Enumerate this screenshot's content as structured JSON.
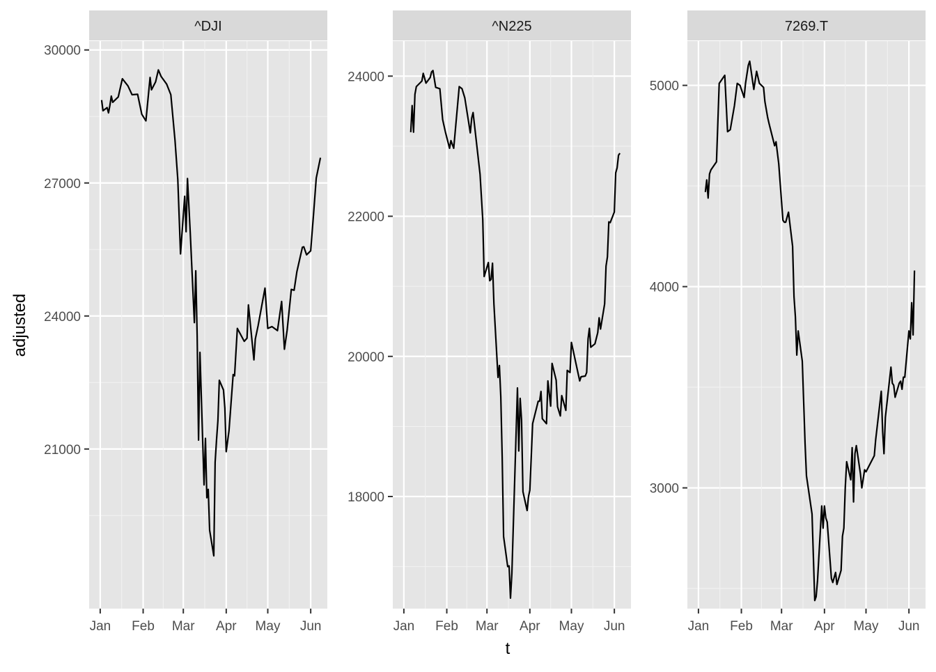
{
  "chart_data": {
    "type": "line",
    "layout": "facet_wrap",
    "xlabel": "t",
    "ylabel": "adjusted",
    "x_tick_labels": [
      "Jan",
      "Feb",
      "Mar",
      "Apr",
      "May",
      "Jun"
    ],
    "x_ticks": [
      "2020-01-01",
      "2020-02-01",
      "2020-03-01",
      "2020-04-01",
      "2020-05-01",
      "2020-06-01"
    ],
    "x_range": [
      "2019-12-24",
      "2020-06-13"
    ],
    "grid": true,
    "panel_background": "#e5e5e5",
    "strip_background": "#d9d9d9",
    "line_color": "#000000",
    "panels": [
      {
        "name": "^DJI",
        "ylim": [
          17400,
          30200
        ],
        "y_ticks": [
          21000,
          24000,
          27000,
          30000
        ],
        "x": [
          "2020-01-02",
          "2020-01-03",
          "2020-01-06",
          "2020-01-07",
          "2020-01-08",
          "2020-01-09",
          "2020-01-10",
          "2020-01-14",
          "2020-01-17",
          "2020-01-21",
          "2020-01-24",
          "2020-01-28",
          "2020-01-31",
          "2020-02-03",
          "2020-02-06",
          "2020-02-07",
          "2020-02-10",
          "2020-02-12",
          "2020-02-14",
          "2020-02-18",
          "2020-02-21",
          "2020-02-24",
          "2020-02-26",
          "2020-02-28",
          "2020-03-02",
          "2020-03-03",
          "2020-03-04",
          "2020-03-06",
          "2020-03-09",
          "2020-03-10",
          "2020-03-11",
          "2020-03-12",
          "2020-03-13",
          "2020-03-16",
          "2020-03-17",
          "2020-03-18",
          "2020-03-19",
          "2020-03-20",
          "2020-03-23",
          "2020-03-24",
          "2020-03-25",
          "2020-03-26",
          "2020-03-27",
          "2020-03-30",
          "2020-03-31",
          "2020-04-01",
          "2020-04-03",
          "2020-04-06",
          "2020-04-07",
          "2020-04-09",
          "2020-04-14",
          "2020-04-16",
          "2020-04-17",
          "2020-04-21",
          "2020-04-22",
          "2020-04-24",
          "2020-04-29",
          "2020-05-01",
          "2020-05-04",
          "2020-05-08",
          "2020-05-11",
          "2020-05-13",
          "2020-05-15",
          "2020-05-18",
          "2020-05-20",
          "2020-05-22",
          "2020-05-26",
          "2020-05-27",
          "2020-05-29",
          "2020-06-01",
          "2020-06-03",
          "2020-06-05",
          "2020-06-08"
        ],
        "values": [
          28870,
          28630,
          28700,
          28580,
          28750,
          28960,
          28820,
          28940,
          29350,
          29190,
          28990,
          29000,
          28550,
          28400,
          29380,
          29100,
          29280,
          29550,
          29400,
          29230,
          28990,
          27960,
          27080,
          25400,
          26700,
          25900,
          27100,
          25870,
          23850,
          25020,
          23550,
          21200,
          23180,
          20190,
          21240,
          19900,
          20090,
          19170,
          18590,
          20700,
          21200,
          21640,
          22550,
          22330,
          21920,
          20940,
          21410,
          22680,
          22650,
          23720,
          23430,
          23500,
          24250,
          23010,
          23480,
          23780,
          24630,
          23720,
          23760,
          23670,
          24330,
          23250,
          23680,
          24600,
          24580,
          25000,
          25550,
          25560,
          25380,
          25470,
          26270,
          27110,
          27570
        ]
      },
      {
        "name": "^N225",
        "ylim": [
          16400,
          24500
        ],
        "y_ticks": [
          18000,
          20000,
          22000,
          24000
        ],
        "x": [
          "2020-01-06",
          "2020-01-07",
          "2020-01-08",
          "2020-01-09",
          "2020-01-10",
          "2020-01-14",
          "2020-01-15",
          "2020-01-17",
          "2020-01-20",
          "2020-01-21",
          "2020-01-22",
          "2020-01-24",
          "2020-01-27",
          "2020-01-29",
          "2020-01-31",
          "2020-02-03",
          "2020-02-04",
          "2020-02-06",
          "2020-02-10",
          "2020-02-12",
          "2020-02-14",
          "2020-02-18",
          "2020-02-19",
          "2020-02-20",
          "2020-02-25",
          "2020-02-27",
          "2020-02-28",
          "2020-03-02",
          "2020-03-03",
          "2020-03-04",
          "2020-03-05",
          "2020-03-06",
          "2020-03-09",
          "2020-03-10",
          "2020-03-11",
          "2020-03-12",
          "2020-03-13",
          "2020-03-16",
          "2020-03-17",
          "2020-03-18",
          "2020-03-19",
          "2020-03-23",
          "2020-03-24",
          "2020-03-25",
          "2020-03-26",
          "2020-03-27",
          "2020-03-30",
          "2020-03-31",
          "2020-04-01",
          "2020-04-03",
          "2020-04-07",
          "2020-04-08",
          "2020-04-09",
          "2020-04-10",
          "2020-04-13",
          "2020-04-14",
          "2020-04-16",
          "2020-04-17",
          "2020-04-20",
          "2020-04-21",
          "2020-04-23",
          "2020-04-24",
          "2020-04-27",
          "2020-04-28",
          "2020-04-30",
          "2020-05-01",
          "2020-05-07",
          "2020-05-08",
          "2020-05-11",
          "2020-05-12",
          "2020-05-13",
          "2020-05-14",
          "2020-05-15",
          "2020-05-18",
          "2020-05-20",
          "2020-05-21",
          "2020-05-22",
          "2020-05-25",
          "2020-05-26",
          "2020-05-27",
          "2020-05-28",
          "2020-05-29",
          "2020-06-01",
          "2020-06-02",
          "2020-06-03",
          "2020-06-04",
          "2020-06-05"
        ],
        "values": [
          23200,
          23580,
          23200,
          23740,
          23850,
          23930,
          24040,
          23900,
          23980,
          24060,
          24080,
          23840,
          23820,
          23380,
          23200,
          22970,
          23080,
          22970,
          23850,
          23820,
          23690,
          23190,
          23400,
          23480,
          22600,
          21950,
          21140,
          21340,
          21080,
          21100,
          21330,
          20750,
          19700,
          19870,
          19420,
          18560,
          17430,
          17000,
          17010,
          16550,
          16900,
          19550,
          18650,
          19400,
          19090,
          18070,
          17800,
          18000,
          18090,
          19040,
          19360,
          19360,
          19500,
          19110,
          19040,
          19650,
          19290,
          19900,
          19660,
          19280,
          19150,
          19440,
          19230,
          19800,
          19770,
          20200,
          19650,
          19710,
          19720,
          19770,
          20250,
          20400,
          20130,
          20180,
          20340,
          20550,
          20390,
          20750,
          21290,
          21420,
          21920,
          21910,
          22060,
          22620,
          22690,
          22870,
          22900
        ]
      },
      {
        "name": "7269.T",
        "ylim": [
          2400,
          5220
        ],
        "y_ticks": [
          3000,
          4000,
          5000
        ],
        "x": [
          "2020-01-06",
          "2020-01-07",
          "2020-01-08",
          "2020-01-09",
          "2020-01-10",
          "2020-01-14",
          "2020-01-16",
          "2020-01-20",
          "2020-01-22",
          "2020-01-24",
          "2020-01-27",
          "2020-01-29",
          "2020-01-31",
          "2020-02-03",
          "2020-02-04",
          "2020-02-06",
          "2020-02-07",
          "2020-02-10",
          "2020-02-12",
          "2020-02-14",
          "2020-02-17",
          "2020-02-18",
          "2020-02-20",
          "2020-02-21",
          "2020-02-25",
          "2020-02-26",
          "2020-02-28",
          "2020-03-02",
          "2020-03-03",
          "2020-03-04",
          "2020-03-06",
          "2020-03-09",
          "2020-03-10",
          "2020-03-11",
          "2020-03-12",
          "2020-03-13",
          "2020-03-16",
          "2020-03-18",
          "2020-03-19",
          "2020-03-23",
          "2020-03-25",
          "2020-03-26",
          "2020-03-27",
          "2020-03-30",
          "2020-03-31",
          "2020-04-01",
          "2020-04-02",
          "2020-04-03",
          "2020-04-06",
          "2020-04-07",
          "2020-04-09",
          "2020-04-10",
          "2020-04-13",
          "2020-04-14",
          "2020-04-15",
          "2020-04-16",
          "2020-04-17",
          "2020-04-20",
          "2020-04-21",
          "2020-04-22",
          "2020-04-23",
          "2020-04-24",
          "2020-04-27",
          "2020-04-28",
          "2020-04-30",
          "2020-05-01",
          "2020-05-07",
          "2020-05-08",
          "2020-05-12",
          "2020-05-13",
          "2020-05-14",
          "2020-05-15",
          "2020-05-19",
          "2020-05-20",
          "2020-05-21",
          "2020-05-22",
          "2020-05-25",
          "2020-05-26",
          "2020-05-27",
          "2020-05-28",
          "2020-05-29",
          "2020-06-01",
          "2020-06-02",
          "2020-06-03",
          "2020-06-04",
          "2020-06-05"
        ],
        "values": [
          4470,
          4530,
          4440,
          4560,
          4580,
          4620,
          5010,
          5050,
          4770,
          4780,
          4900,
          5010,
          5000,
          4940,
          5010,
          5100,
          5120,
          4980,
          5070,
          5010,
          4990,
          4920,
          4840,
          4810,
          4700,
          4720,
          4610,
          4330,
          4320,
          4320,
          4370,
          4200,
          3950,
          3850,
          3660,
          3780,
          3630,
          3220,
          3060,
          2870,
          2440,
          2460,
          2540,
          2910,
          2800,
          2910,
          2850,
          2830,
          2550,
          2530,
          2580,
          2520,
          2590,
          2760,
          2800,
          3000,
          3130,
          3040,
          3200,
          2930,
          3170,
          3210,
          3070,
          3000,
          3090,
          3080,
          3160,
          3240,
          3480,
          3280,
          3170,
          3350,
          3600,
          3520,
          3510,
          3450,
          3520,
          3530,
          3490,
          3550,
          3550,
          3780,
          3740,
          3920,
          3760,
          4080
        ]
      }
    ]
  }
}
